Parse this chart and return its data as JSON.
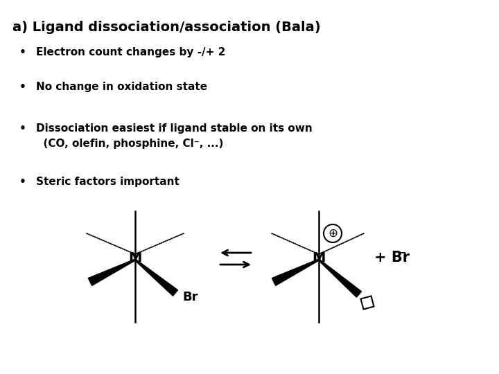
{
  "title": "a) Ligand dissociation/association (Bala)",
  "bullet1": "Electron count changes by -/+ 2",
  "bullet2": "No change in oxidation state",
  "bullet3a": "Dissociation easiest if ligand stable on its own",
  "bullet3b": "  (CO, olefin, phosphine, Cl⁻, ...)",
  "bullet4": "Steric factors important",
  "background_color": "#ffffff",
  "text_color": "#000000",
  "title_fontsize": 14,
  "bullet_fontsize": 11
}
